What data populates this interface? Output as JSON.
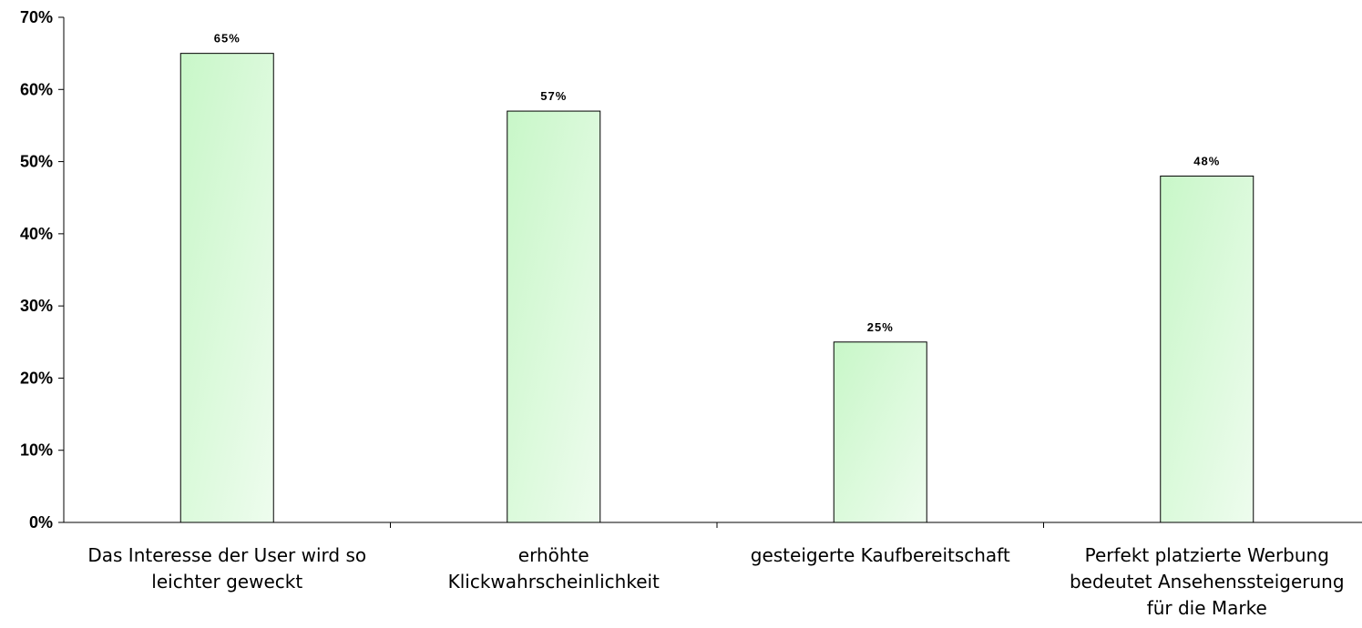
{
  "chart_data": {
    "type": "bar",
    "categories": [
      [
        "Das Interesse der User wird so",
        "leichter geweckt"
      ],
      [
        "erhöhte",
        "Klickwahrscheinlichkeit"
      ],
      [
        "gesteigerte Kaufbereitschaft"
      ],
      [
        "Perfekt platzierte Werbung",
        "bedeutet Ansehenssteigerung",
        "für die Marke"
      ]
    ],
    "values": [
      65,
      57,
      25,
      48
    ],
    "data_labels": [
      "65%",
      "57%",
      "25%",
      "48%"
    ],
    "ylim": [
      0,
      70
    ],
    "y_ticks": [
      0,
      10,
      20,
      30,
      40,
      50,
      60,
      70
    ],
    "y_tick_labels": [
      "0%",
      "10%",
      "20%",
      "30%",
      "40%",
      "50%",
      "60%",
      "70%"
    ],
    "title": "",
    "xlabel": "",
    "ylabel": "",
    "grid": false,
    "legend": "none",
    "bar_fill_colors": [
      "#c8f7c8",
      "#eefcee"
    ],
    "bar_border_color": "#000000"
  }
}
